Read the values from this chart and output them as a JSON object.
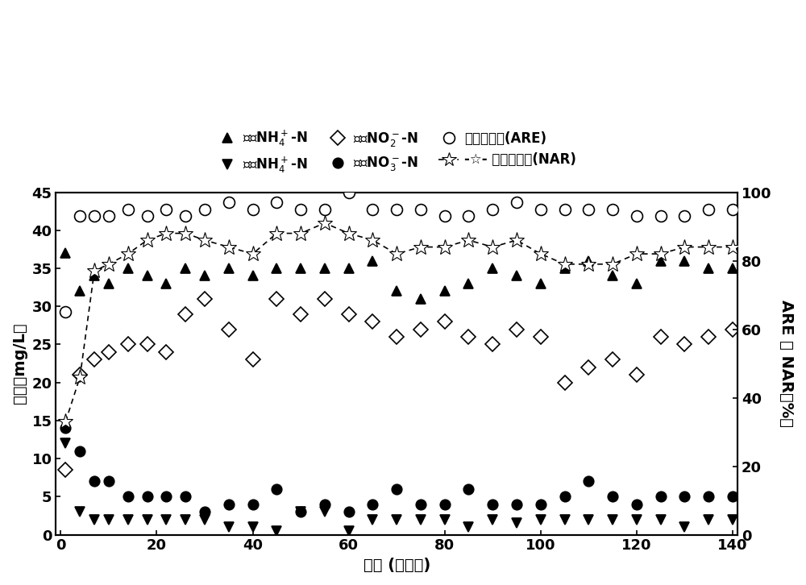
{
  "influent_NH4_x": [
    1,
    4,
    7,
    10,
    14,
    18,
    22,
    26,
    30,
    35,
    40,
    45,
    50,
    55,
    60,
    65,
    70,
    75,
    80,
    85,
    90,
    95,
    100,
    105,
    110,
    115,
    120,
    125,
    130,
    135,
    140
  ],
  "influent_NH4_y": [
    37,
    32,
    34,
    33,
    35,
    34,
    33,
    35,
    34,
    35,
    34,
    35,
    35,
    35,
    35,
    36,
    32,
    31,
    32,
    33,
    35,
    34,
    33,
    35,
    36,
    34,
    33,
    36,
    36,
    35,
    35
  ],
  "effluent_NH4_x": [
    1,
    4,
    7,
    10,
    14,
    18,
    22,
    26,
    30,
    35,
    40,
    45,
    50,
    55,
    60,
    65,
    70,
    75,
    80,
    85,
    90,
    95,
    100,
    105,
    110,
    115,
    120,
    125,
    130,
    135,
    140
  ],
  "effluent_NH4_y": [
    12,
    3,
    2,
    2,
    2,
    2,
    2,
    2,
    2,
    1,
    1,
    0.5,
    3,
    3,
    0.5,
    2,
    2,
    2,
    2,
    1,
    2,
    1.5,
    2,
    2,
    2,
    2,
    2,
    2,
    1,
    2,
    2
  ],
  "effluent_NO2_x": [
    1,
    4,
    7,
    10,
    14,
    18,
    22,
    26,
    30,
    35,
    40,
    45,
    50,
    55,
    60,
    65,
    70,
    75,
    80,
    85,
    90,
    95,
    100,
    105,
    110,
    115,
    120,
    125,
    130,
    135,
    140
  ],
  "effluent_NO2_y": [
    8.5,
    21,
    23,
    24,
    25,
    25,
    24,
    29,
    31,
    27,
    23,
    31,
    29,
    31,
    29,
    28,
    26,
    27,
    28,
    26,
    25,
    27,
    26,
    20,
    22,
    23,
    21,
    26,
    25,
    26,
    27
  ],
  "effluent_NO3_x": [
    1,
    4,
    7,
    10,
    14,
    18,
    22,
    26,
    30,
    35,
    40,
    45,
    50,
    55,
    60,
    65,
    70,
    75,
    80,
    85,
    90,
    95,
    100,
    105,
    110,
    115,
    120,
    125,
    130,
    135,
    140
  ],
  "effluent_NO3_y": [
    14,
    11,
    7,
    7,
    5,
    5,
    5,
    5,
    3,
    4,
    4,
    6,
    3,
    4,
    3,
    4,
    6,
    4,
    4,
    6,
    4,
    4,
    4,
    5,
    7,
    5,
    4,
    5,
    5,
    5,
    5
  ],
  "ARE_x": [
    1,
    4,
    7,
    10,
    14,
    18,
    22,
    26,
    30,
    35,
    40,
    45,
    50,
    55,
    60,
    65,
    70,
    75,
    80,
    85,
    90,
    95,
    100,
    105,
    110,
    115,
    120,
    125,
    130,
    135,
    140
  ],
  "ARE_y": [
    65,
    93,
    93,
    93,
    95,
    93,
    95,
    93,
    95,
    97,
    95,
    97,
    95,
    95,
    100,
    95,
    95,
    95,
    93,
    93,
    95,
    97,
    95,
    95,
    95,
    95,
    93,
    93,
    93,
    95,
    95
  ],
  "NAR_x": [
    1,
    4,
    7,
    10,
    14,
    18,
    22,
    26,
    30,
    35,
    40,
    45,
    50,
    55,
    60,
    65,
    70,
    75,
    80,
    85,
    90,
    95,
    100,
    105,
    110,
    115,
    120,
    125,
    130,
    135,
    140
  ],
  "NAR_y": [
    33,
    46,
    77,
    79,
    82,
    86,
    88,
    88,
    86,
    84,
    82,
    88,
    88,
    91,
    88,
    86,
    82,
    84,
    84,
    86,
    84,
    86,
    82,
    79,
    79,
    79,
    82,
    82,
    84,
    84,
    84
  ],
  "left_ylim": [
    0,
    45
  ],
  "right_ylim": [
    0,
    100
  ],
  "xlim": [
    -1,
    141
  ],
  "left_yticks": [
    0,
    5,
    10,
    15,
    20,
    25,
    30,
    35,
    40,
    45
  ],
  "right_yticks": [
    0,
    20,
    40,
    60,
    80,
    100
  ],
  "xticks": [
    0,
    20,
    40,
    60,
    80,
    100,
    120,
    140
  ]
}
